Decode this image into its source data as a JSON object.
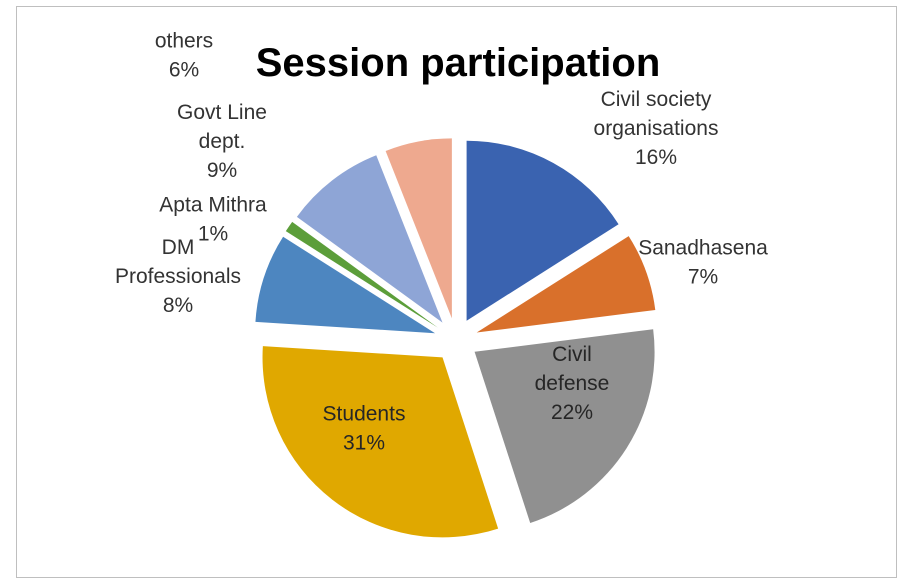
{
  "chart_data": {
    "type": "pie",
    "title": "Session participation",
    "slices": [
      {
        "label_lines": [
          "Civil society",
          "organisations"
        ],
        "pct_label": "16%",
        "value": 16,
        "color": "#3a63b0"
      },
      {
        "label_lines": [
          "Sanadhasena"
        ],
        "pct_label": "7%",
        "value": 7,
        "color": "#d9702b"
      },
      {
        "label_lines": [
          "Civil",
          "defense"
        ],
        "pct_label": "22%",
        "value": 22,
        "color": "#909090"
      },
      {
        "label_lines": [
          "Students"
        ],
        "pct_label": "31%",
        "value": 31,
        "color": "#e0a800"
      },
      {
        "label_lines": [
          "DM",
          "Professionals"
        ],
        "pct_label": "8%",
        "value": 8,
        "color": "#4d86c0"
      },
      {
        "label_lines": [
          "Apta Mithra"
        ],
        "pct_label": "1%",
        "value": 1,
        "color": "#5c9e3a"
      },
      {
        "label_lines": [
          "Govt Line",
          "dept."
        ],
        "pct_label": "9%",
        "value": 9,
        "color": "#8ea5d6"
      },
      {
        "label_lines": [
          "others"
        ],
        "pct_label": "6%",
        "value": 6,
        "color": "#eea98f"
      }
    ],
    "legend": "none",
    "exploded": true
  }
}
